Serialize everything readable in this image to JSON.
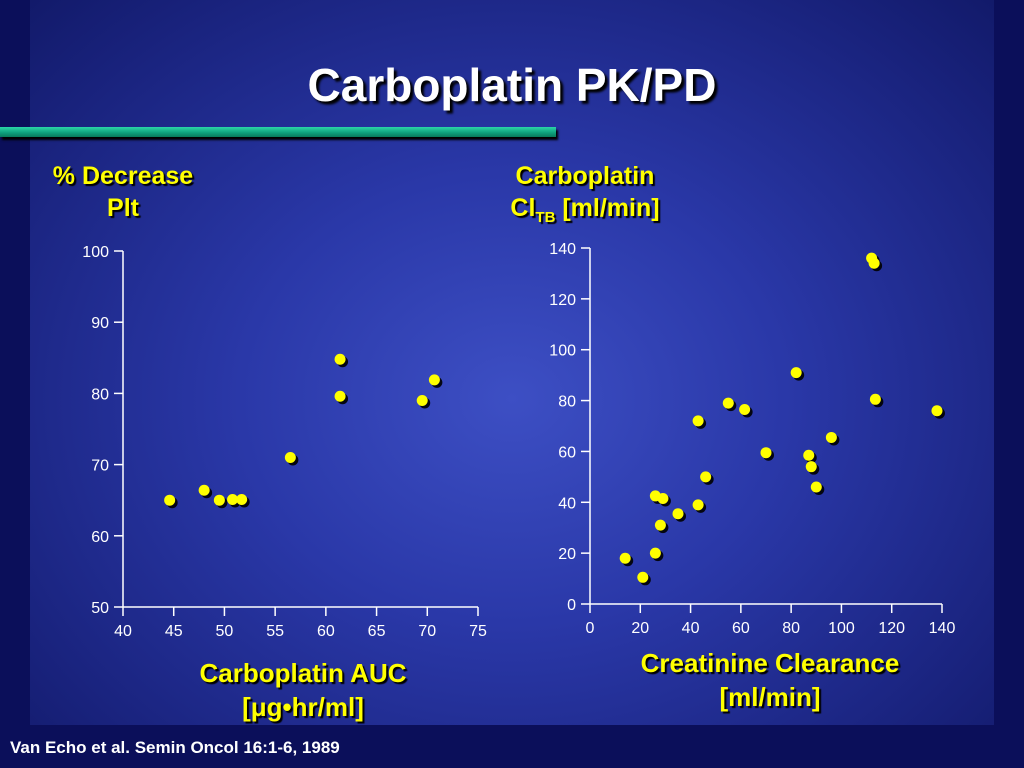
{
  "title": "Carboplatin PK/PD",
  "citation": "Van Echo et al. Semin Oncol 16:1-6, 1989",
  "colors": {
    "background": "#2a38a8",
    "title": "#ffffff",
    "label": "#ffff00",
    "point": "#ffff00",
    "axis": "#ffffff",
    "rule": "#0e9e7a"
  },
  "chart_data": [
    {
      "type": "scatter",
      "ylabel_line1": "% Decrease",
      "ylabel_line2": "Plt",
      "xlabel_line1": "Carboplatin AUC",
      "xlabel_line2": "[μg•hr/ml]",
      "xlim": [
        40,
        75
      ],
      "ylim": [
        50,
        100
      ],
      "xticks": [
        40,
        45,
        50,
        55,
        60,
        65,
        70,
        75
      ],
      "yticks": [
        50,
        60,
        70,
        80,
        90,
        100
      ],
      "grid": false,
      "points": [
        {
          "x": 44.6,
          "y": 65
        },
        {
          "x": 48,
          "y": 66.4
        },
        {
          "x": 49.5,
          "y": 65
        },
        {
          "x": 50.8,
          "y": 65.1
        },
        {
          "x": 51.7,
          "y": 65.1
        },
        {
          "x": 56.5,
          "y": 71
        },
        {
          "x": 61.4,
          "y": 84.8
        },
        {
          "x": 61.4,
          "y": 79.6
        },
        {
          "x": 69.5,
          "y": 79
        },
        {
          "x": 70.7,
          "y": 81.9
        }
      ]
    },
    {
      "type": "scatter",
      "ylabel_line1": "Carboplatin",
      "ylabel_main": "Cl",
      "ylabel_sub": "TB",
      "ylabel_unit": " [ml/min]",
      "xlabel_line1": "Creatinine Clearance",
      "xlabel_line2": "[ml/min]",
      "xlim": [
        0,
        140
      ],
      "ylim": [
        0,
        140
      ],
      "xticks": [
        0,
        20,
        40,
        60,
        80,
        100,
        120,
        140
      ],
      "yticks": [
        0,
        20,
        40,
        60,
        80,
        100,
        120,
        140
      ],
      "grid": false,
      "points": [
        {
          "x": 14,
          "y": 18
        },
        {
          "x": 21,
          "y": 10.5
        },
        {
          "x": 26,
          "y": 20
        },
        {
          "x": 26,
          "y": 42.5
        },
        {
          "x": 28,
          "y": 31
        },
        {
          "x": 29,
          "y": 41.5
        },
        {
          "x": 35,
          "y": 35.5
        },
        {
          "x": 43,
          "y": 39
        },
        {
          "x": 43,
          "y": 72
        },
        {
          "x": 46,
          "y": 50
        },
        {
          "x": 55,
          "y": 79
        },
        {
          "x": 61.5,
          "y": 76.5
        },
        {
          "x": 70,
          "y": 59.5
        },
        {
          "x": 82,
          "y": 91
        },
        {
          "x": 87,
          "y": 58.5
        },
        {
          "x": 88,
          "y": 54
        },
        {
          "x": 90,
          "y": 46
        },
        {
          "x": 96,
          "y": 65.5
        },
        {
          "x": 112,
          "y": 136
        },
        {
          "x": 113,
          "y": 134
        },
        {
          "x": 113.5,
          "y": 80.5
        },
        {
          "x": 138,
          "y": 76
        }
      ]
    }
  ]
}
